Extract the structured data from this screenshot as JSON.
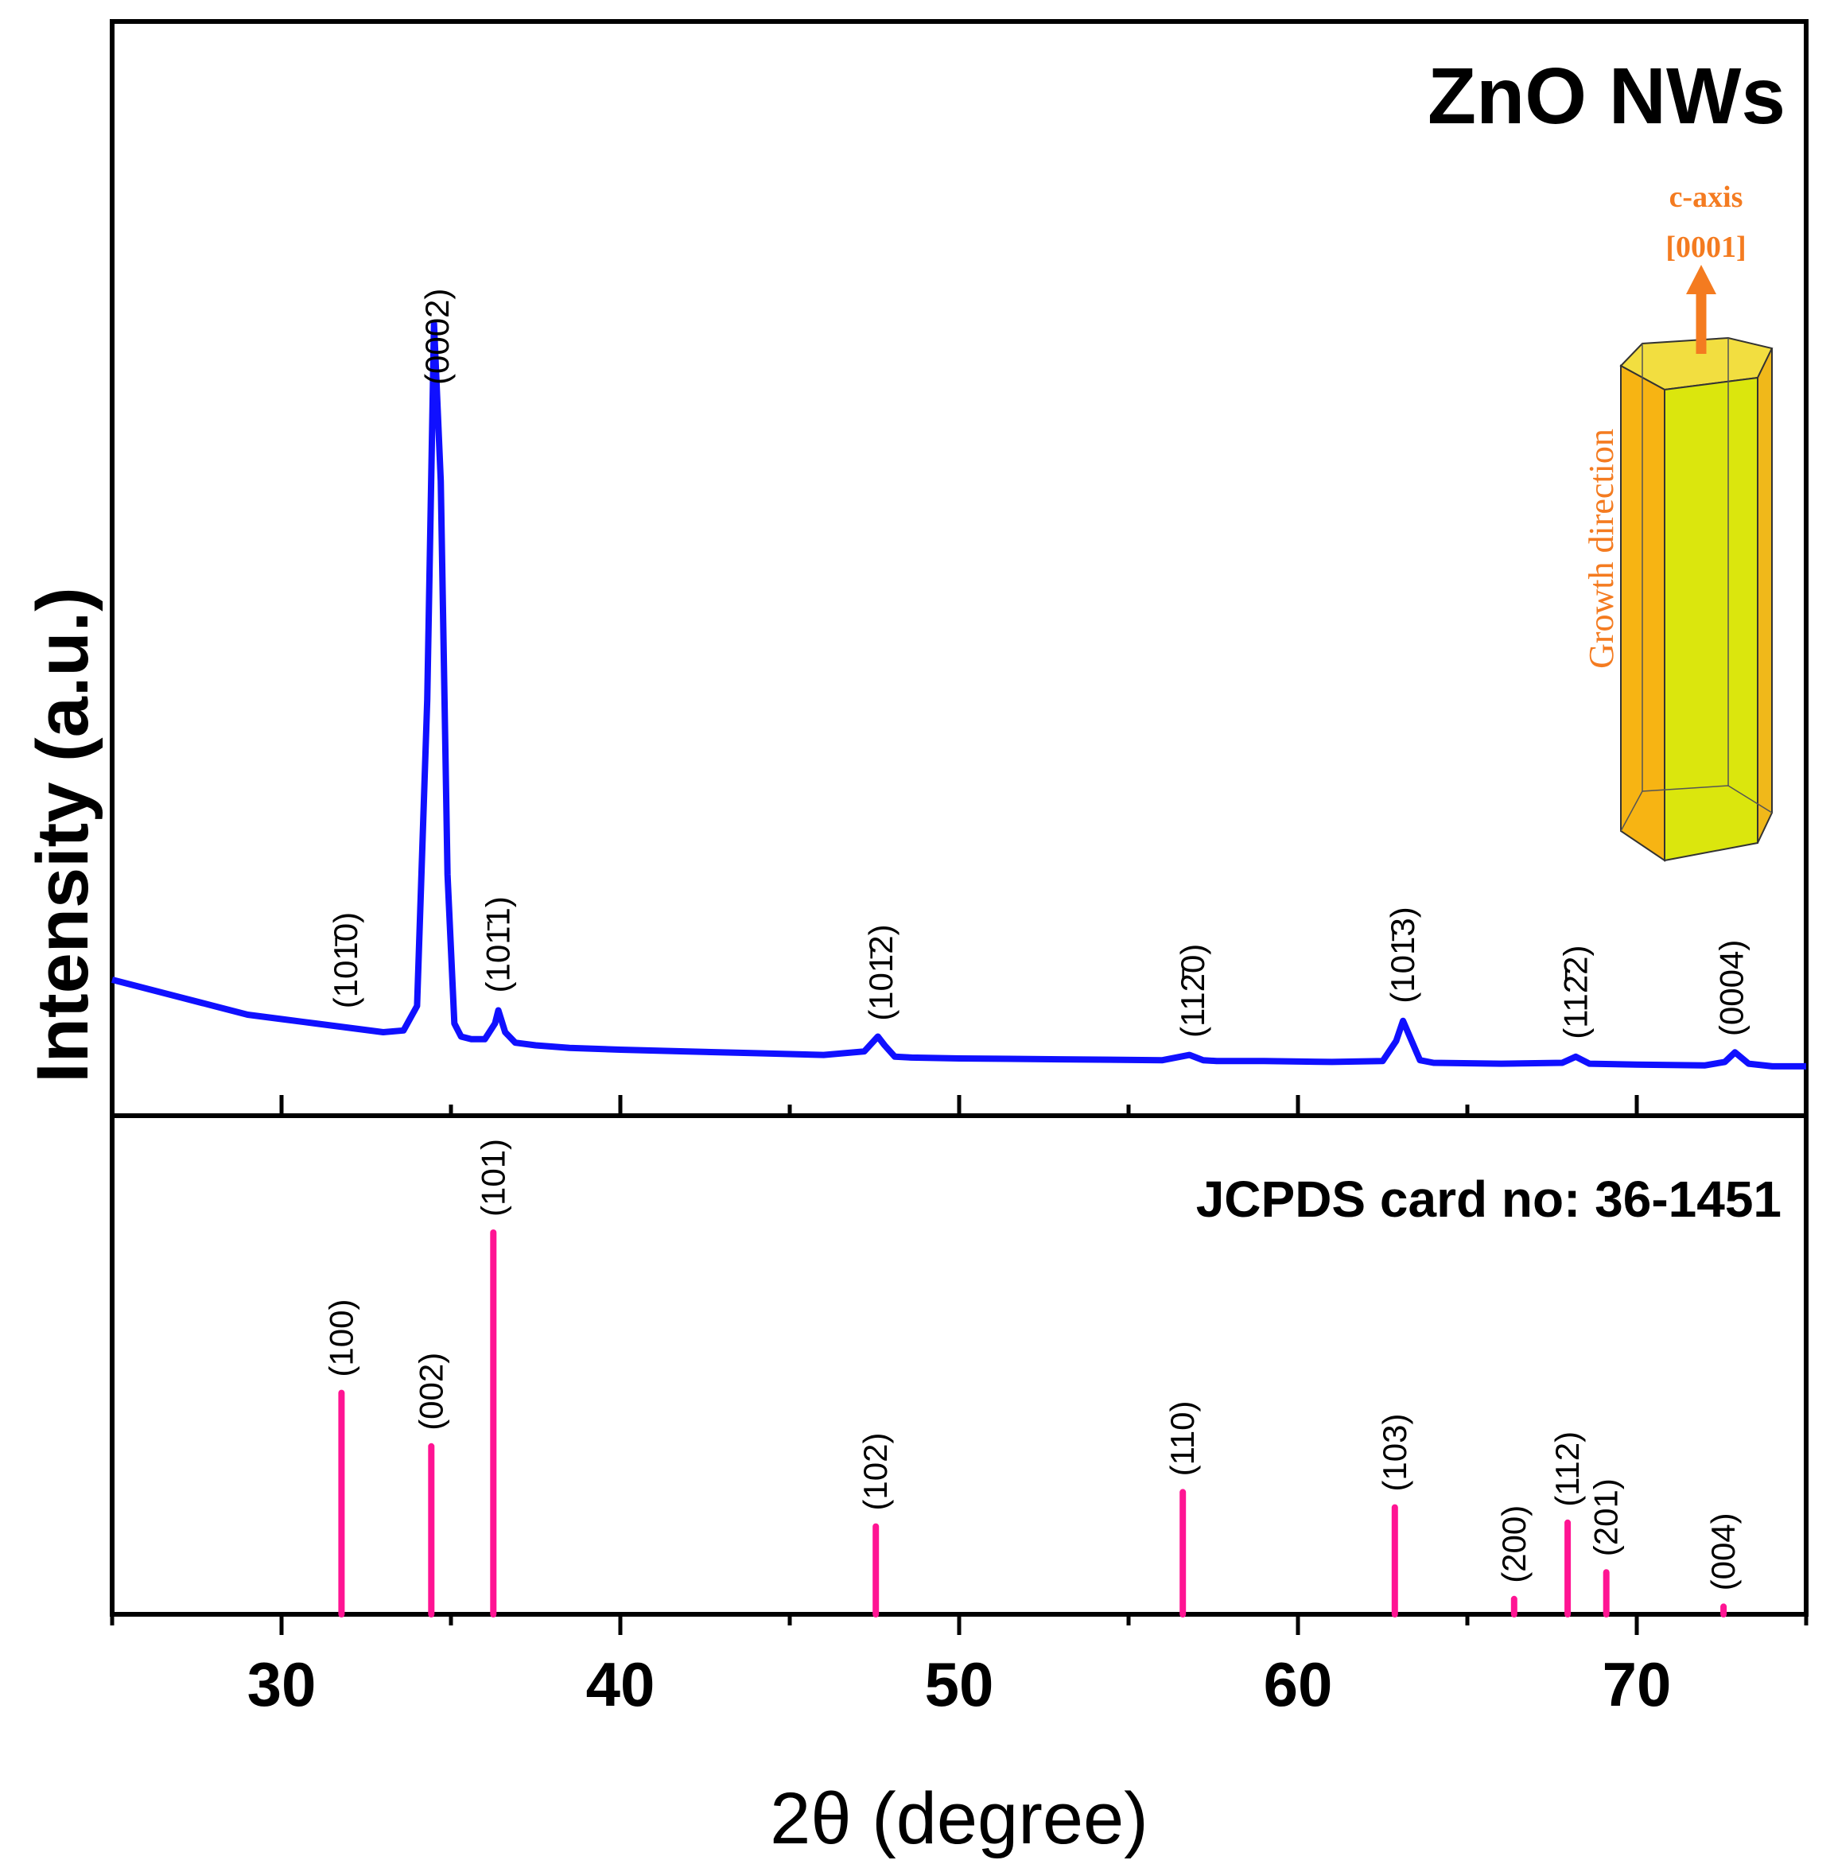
{
  "chart_data": [
    {
      "type": "line",
      "panel": "top",
      "title": "ZnO NWs",
      "ylabel": "Intensity (a.u.)",
      "xlim": [
        25,
        75
      ],
      "ylim": [
        0,
        100
      ],
      "series": [
        {
          "color": "#1010ff",
          "x": [
            25,
            26,
            27,
            28,
            29,
            30,
            31,
            32,
            33,
            33.6,
            34.0,
            34.3,
            34.5,
            34.7,
            34.9,
            35.1,
            35.3,
            35.6,
            36.0,
            36.3,
            36.4,
            36.6,
            36.9,
            37.5,
            38.5,
            40,
            42,
            44,
            46,
            47.2,
            47.6,
            47.8,
            48.1,
            48.6,
            50,
            53,
            56,
            56.8,
            57.2,
            57.6,
            59,
            61,
            62.5,
            62.9,
            63.1,
            63.3,
            63.6,
            64,
            66,
            67.8,
            68.2,
            68.6,
            70,
            72,
            72.6,
            72.9,
            73.3,
            74,
            75
          ],
          "y": [
            13,
            12,
            11,
            10,
            9,
            8.5,
            8,
            7.5,
            7,
            7.2,
            10,
            45,
            88,
            70,
            25,
            8,
            6.5,
            6.2,
            6.2,
            8,
            9.5,
            7,
            5.8,
            5.5,
            5.2,
            5,
            4.8,
            4.6,
            4.4,
            4.8,
            6.5,
            5.5,
            4.2,
            4.1,
            4,
            3.9,
            3.8,
            4.4,
            3.8,
            3.7,
            3.7,
            3.6,
            3.7,
            6,
            8.3,
            6.5,
            3.8,
            3.5,
            3.4,
            3.5,
            4.2,
            3.4,
            3.3,
            3.2,
            3.6,
            4.7,
            3.4,
            3.1,
            3.1
          ]
        }
      ],
      "annotations": [
        {
          "text": "(101̄0)",
          "x": 31.9
        },
        {
          "text": "(0002)",
          "x": 34.6
        },
        {
          "text": "(101̄1)",
          "x": 36.4
        },
        {
          "text": "(101̄2)",
          "x": 47.7
        },
        {
          "text": "(112̄0)",
          "x": 56.9
        },
        {
          "text": "(101̄3)",
          "x": 63.1
        },
        {
          "text": "(112̄2)",
          "x": 68.2
        },
        {
          "text": "(0004)",
          "x": 72.8
        }
      ],
      "inset": {
        "axis_label": "c-axis",
        "direction": "[0001]",
        "side_label": "Growth direction",
        "arrow_color": "#f47b20"
      }
    },
    {
      "type": "bar",
      "panel": "bottom",
      "title": "JCPDS card no: 36-1451",
      "xlabel": "2θ (degree)",
      "xlim": [
        25,
        75
      ],
      "ylim": [
        0,
        100
      ],
      "xticks": [
        30,
        40,
        50,
        60,
        70
      ],
      "color": "#ff1493",
      "bars": [
        {
          "label": "(100)",
          "x": 31.77,
          "value": 58
        },
        {
          "label": "(002)",
          "x": 34.42,
          "value": 44
        },
        {
          "label": "(101)",
          "x": 36.25,
          "value": 100
        },
        {
          "label": "(102)",
          "x": 47.54,
          "value": 23
        },
        {
          "label": "(110)",
          "x": 56.6,
          "value": 32
        },
        {
          "label": "(103)",
          "x": 62.86,
          "value": 28
        },
        {
          "label": "(200)",
          "x": 66.38,
          "value": 4
        },
        {
          "label": "(112)",
          "x": 67.96,
          "value": 24
        },
        {
          "label": "(201)",
          "x": 69.1,
          "value": 11
        },
        {
          "label": "(004)",
          "x": 72.56,
          "value": 2
        }
      ]
    }
  ]
}
